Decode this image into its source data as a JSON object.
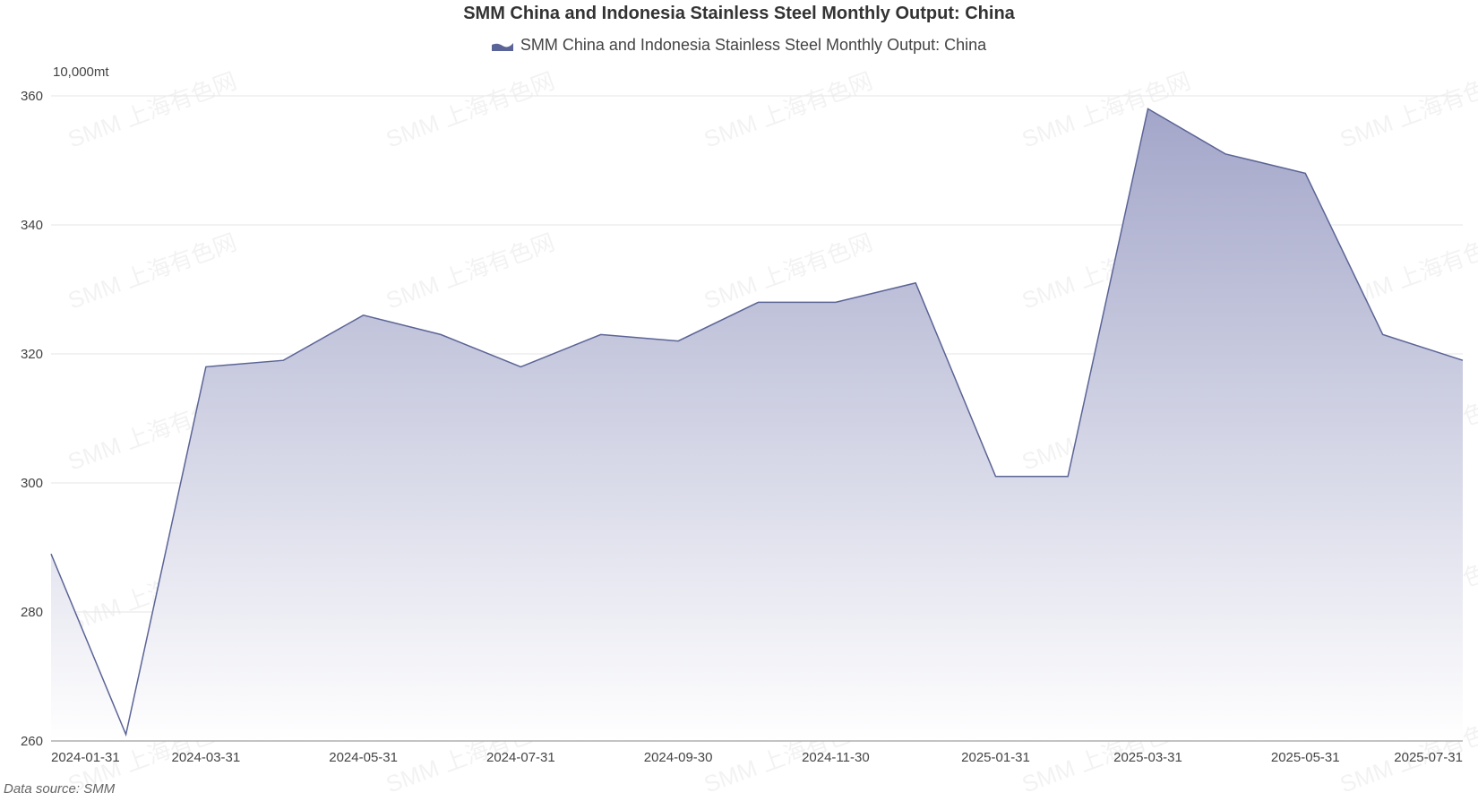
{
  "chart_data": {
    "type": "area",
    "title": "SMM China and Indonesia Stainless Steel Monthly Output: China",
    "legend": [
      "SMM China and Indonesia Stainless Steel Monthly Output: China"
    ],
    "ylabel": "10,000mt",
    "source": "Data source:  SMM",
    "ylim": [
      260,
      360
    ],
    "y_ticks": [
      "260",
      "280",
      "300",
      "320",
      "340",
      "360"
    ],
    "x_ticks": [
      "2024-01-31",
      "2024-03-31",
      "2024-05-31",
      "2024-07-31",
      "2024-09-30",
      "2024-11-30",
      "2025-01-31",
      "2025-03-31",
      "2025-05-31",
      "2025-07-31"
    ],
    "x": [
      "2024-01-31",
      "2024-02-29",
      "2024-03-31",
      "2024-04-30",
      "2024-05-31",
      "2024-06-30",
      "2024-07-31",
      "2024-08-31",
      "2024-09-30",
      "2024-10-31",
      "2024-11-30",
      "2024-12-31",
      "2025-01-31",
      "2025-02-28",
      "2025-03-31",
      "2025-04-30",
      "2025-05-31",
      "2025-06-30",
      "2025-07-31"
    ],
    "series": [
      {
        "name": "SMM China and Indonesia Stainless Steel Monthly Output: China",
        "values": [
          289,
          261,
          318,
          319,
          326,
          323,
          318,
          323,
          322,
          328,
          328,
          331,
          301,
          301,
          358,
          351,
          348,
          323,
          319
        ]
      }
    ],
    "grid": true,
    "legend_position": "top-center",
    "watermark": "SMM 上海有色网",
    "colors": {
      "line": "#5b6496",
      "fill_top": "#a3a6c9",
      "fill_bottom": "#ffffff",
      "grid": "#e6e6e6",
      "axis": "#888888"
    }
  }
}
